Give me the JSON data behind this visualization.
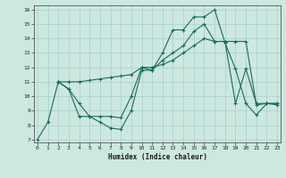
{
  "xlabel": "Humidex (Indice chaleur)",
  "background_color": "#cce8e0",
  "line_color": "#1a6b5a",
  "grid_color": "#aacfc8",
  "xlim": [
    0,
    23
  ],
  "ylim": [
    7,
    16
  ],
  "xticks": [
    0,
    1,
    2,
    3,
    4,
    5,
    6,
    7,
    8,
    9,
    10,
    11,
    12,
    13,
    14,
    15,
    16,
    17,
    18,
    19,
    20,
    21,
    22,
    23
  ],
  "yticks": [
    7,
    8,
    9,
    10,
    11,
    12,
    13,
    14,
    15,
    16
  ],
  "line1_x": [
    0,
    1,
    2,
    3,
    4,
    5,
    6,
    7,
    8,
    9,
    10,
    11,
    12,
    13,
    14,
    15,
    16,
    17,
    18,
    19,
    20,
    21,
    22,
    23
  ],
  "line1_y": [
    7.0,
    8.2,
    11.0,
    10.5,
    9.5,
    8.6,
    8.2,
    7.8,
    7.7,
    9.0,
    11.8,
    11.8,
    13.0,
    14.6,
    14.6,
    15.5,
    15.5,
    16.0,
    13.7,
    11.9,
    9.5,
    8.7,
    9.5,
    9.4
  ],
  "line2_x": [
    2,
    3,
    4,
    5,
    6,
    7,
    8,
    9,
    10,
    11,
    12,
    13,
    14,
    15,
    16,
    17,
    18,
    19,
    20,
    21,
    22,
    23
  ],
  "line2_y": [
    11.0,
    11.0,
    11.0,
    11.1,
    11.2,
    11.3,
    11.4,
    11.5,
    12.0,
    12.0,
    12.2,
    12.5,
    13.0,
    13.5,
    14.0,
    13.8,
    13.8,
    9.5,
    11.9,
    9.5,
    9.5,
    9.5
  ],
  "line3_x": [
    2,
    3,
    4,
    5,
    6,
    7,
    8,
    9,
    10,
    11,
    12,
    13,
    14,
    15,
    16,
    17,
    18,
    19,
    20,
    21,
    22,
    23
  ],
  "line3_y": [
    11.0,
    10.5,
    8.6,
    8.6,
    8.6,
    8.6,
    8.5,
    10.0,
    12.0,
    11.8,
    12.5,
    13.0,
    13.5,
    14.5,
    15.0,
    13.8,
    13.8,
    13.8,
    13.8,
    9.4,
    9.5,
    9.5
  ]
}
